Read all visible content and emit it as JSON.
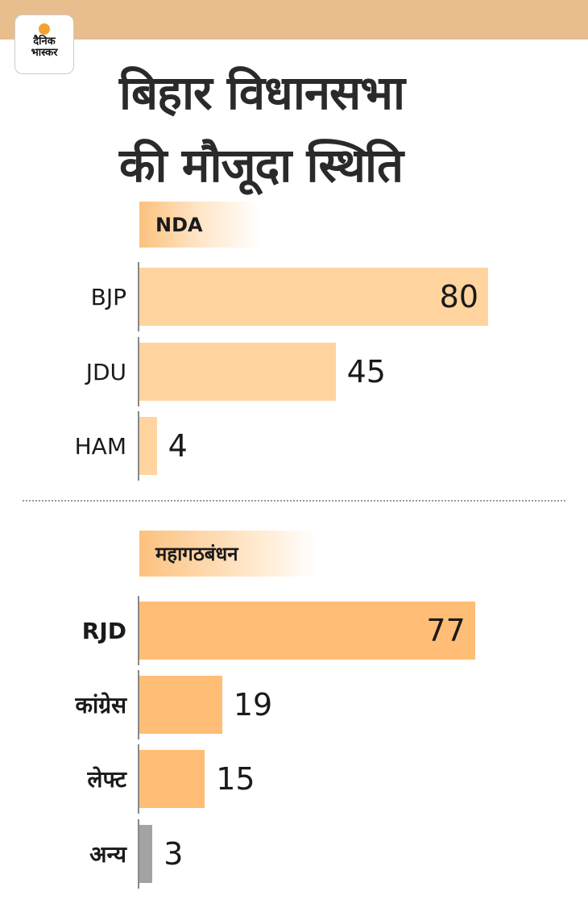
{
  "brand": {
    "logo_line1": "दैनिक",
    "logo_line2": "भास्कर"
  },
  "title": {
    "line1": "बिहार विधानसभा",
    "line2": "की मौजूदा स्थिति"
  },
  "colors": {
    "nda": "#FFD49E",
    "mgb": "#FFBD75",
    "other": "#A3A3A3",
    "band": "#E8BE8E"
  },
  "chart_data": {
    "type": "bar",
    "orientation": "horizontal",
    "title": "बिहार विधानसभा की मौजूदा स्थिति",
    "groups": [
      {
        "name": "NDA",
        "categories": [
          "BJP",
          "JDU",
          "HAM"
        ],
        "values": [
          80,
          45,
          4
        ]
      },
      {
        "name": "महागठबंधन",
        "categories": [
          "RJD",
          "कांग्रेस",
          "लेफ्ट",
          "अन्य"
        ],
        "values": [
          77,
          19,
          15,
          3
        ]
      }
    ],
    "xlim": [
      0,
      80
    ]
  }
}
